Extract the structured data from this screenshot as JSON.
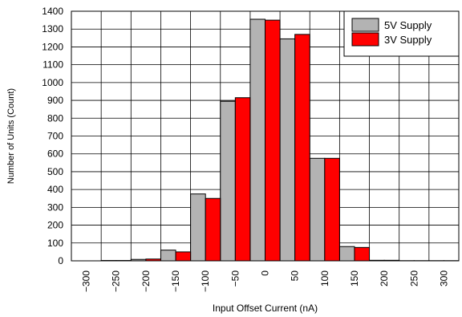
{
  "chart_data": {
    "type": "bar",
    "xlabel": "Input Offset Current (nA)",
    "ylabel": "Number of Units (Count)",
    "categories": [
      "-300",
      "-250",
      "-200",
      "-150",
      "-100",
      "-50",
      "0",
      "50",
      "100",
      "150",
      "200",
      "250",
      "300"
    ],
    "x_ticks": [
      "−300",
      "−250",
      "−200",
      "−150",
      "−100",
      "−50",
      "0",
      "50",
      "100",
      "150",
      "200",
      "250",
      "300"
    ],
    "y_ticks": [
      "0",
      "100",
      "200",
      "300",
      "400",
      "500",
      "600",
      "700",
      "800",
      "900",
      "1000",
      "1100",
      "1200",
      "1300",
      "1400"
    ],
    "ylim": [
      0,
      1400
    ],
    "grid": true,
    "legend_position": "top-right",
    "series": [
      {
        "name": "5V Supply",
        "color": "#b3b3b3",
        "values": [
          0,
          2,
          8,
          60,
          375,
          895,
          1355,
          1245,
          575,
          80,
          3,
          1,
          1
        ]
      },
      {
        "name": "3V Supply",
        "color": "#ff0000",
        "values": [
          0,
          2,
          10,
          50,
          350,
          915,
          1350,
          1270,
          575,
          75,
          3,
          1,
          1
        ]
      }
    ]
  }
}
